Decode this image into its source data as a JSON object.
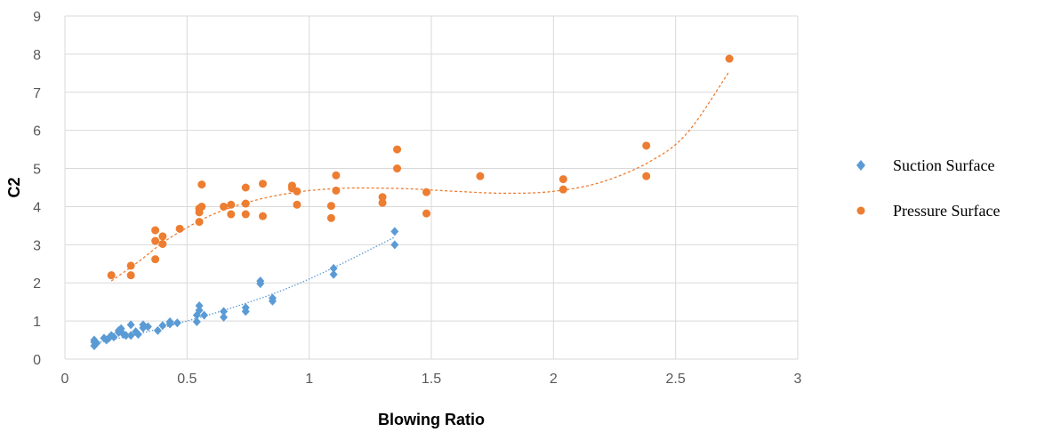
{
  "chart_data": {
    "type": "scatter",
    "xlabel": "Blowing Ratio",
    "ylabel": "C2",
    "xlim": [
      0,
      3
    ],
    "ylim": [
      0,
      9
    ],
    "xticks": [
      "0",
      "0.5",
      "1",
      "1.5",
      "2",
      "2.5",
      "3"
    ],
    "yticks": [
      "0",
      "1",
      "2",
      "3",
      "4",
      "5",
      "6",
      "7",
      "8",
      "9"
    ],
    "grid": "vertical and horizontal major gridlines",
    "legend_position": "right",
    "series": [
      {
        "name": "Suction Surface",
        "marker": "diamond",
        "color": "#5B9BD5",
        "trendline": "polynomial",
        "points": [
          [
            0.12,
            0.35
          ],
          [
            0.12,
            0.45
          ],
          [
            0.12,
            0.5
          ],
          [
            0.13,
            0.42
          ],
          [
            0.16,
            0.55
          ],
          [
            0.17,
            0.5
          ],
          [
            0.18,
            0.55
          ],
          [
            0.19,
            0.62
          ],
          [
            0.2,
            0.58
          ],
          [
            0.22,
            0.7
          ],
          [
            0.22,
            0.75
          ],
          [
            0.23,
            0.8
          ],
          [
            0.24,
            0.65
          ],
          [
            0.25,
            0.62
          ],
          [
            0.27,
            0.9
          ],
          [
            0.27,
            0.62
          ],
          [
            0.29,
            0.72
          ],
          [
            0.3,
            0.65
          ],
          [
            0.32,
            0.82
          ],
          [
            0.32,
            0.9
          ],
          [
            0.34,
            0.85
          ],
          [
            0.38,
            0.75
          ],
          [
            0.4,
            0.88
          ],
          [
            0.43,
            0.92
          ],
          [
            0.43,
            0.98
          ],
          [
            0.46,
            0.95
          ],
          [
            0.54,
            0.98
          ],
          [
            0.54,
            1.15
          ],
          [
            0.55,
            1.28
          ],
          [
            0.55,
            1.4
          ],
          [
            0.57,
            1.15
          ],
          [
            0.65,
            1.1
          ],
          [
            0.65,
            1.25
          ],
          [
            0.74,
            1.25
          ],
          [
            0.74,
            1.35
          ],
          [
            0.8,
            1.98
          ],
          [
            0.8,
            2.05
          ],
          [
            0.85,
            1.52
          ],
          [
            0.85,
            1.6
          ],
          [
            1.1,
            2.22
          ],
          [
            1.1,
            2.38
          ],
          [
            1.35,
            3.0
          ],
          [
            1.35,
            3.35
          ]
        ],
        "trend": [
          [
            0.12,
            0.42
          ],
          [
            0.3,
            0.66
          ],
          [
            0.5,
            1.0
          ],
          [
            0.7,
            1.38
          ],
          [
            0.9,
            1.83
          ],
          [
            1.1,
            2.4
          ],
          [
            1.35,
            3.2
          ]
        ]
      },
      {
        "name": "Pressure Surface",
        "marker": "circle",
        "color": "#ED7D31",
        "trendline": "polynomial",
        "points": [
          [
            0.19,
            2.2
          ],
          [
            0.27,
            2.45
          ],
          [
            0.27,
            2.2
          ],
          [
            0.37,
            3.38
          ],
          [
            0.37,
            3.1
          ],
          [
            0.37,
            2.62
          ],
          [
            0.4,
            3.22
          ],
          [
            0.4,
            3.02
          ],
          [
            0.47,
            3.42
          ],
          [
            0.55,
            3.6
          ],
          [
            0.55,
            3.85
          ],
          [
            0.55,
            3.95
          ],
          [
            0.56,
            4.0
          ],
          [
            0.56,
            4.58
          ],
          [
            0.65,
            4.0
          ],
          [
            0.68,
            4.05
          ],
          [
            0.68,
            3.8
          ],
          [
            0.74,
            4.5
          ],
          [
            0.74,
            4.08
          ],
          [
            0.74,
            3.8
          ],
          [
            0.81,
            4.6
          ],
          [
            0.81,
            3.75
          ],
          [
            0.93,
            4.55
          ],
          [
            0.93,
            4.48
          ],
          [
            0.95,
            4.4
          ],
          [
            0.95,
            4.05
          ],
          [
            1.09,
            4.02
          ],
          [
            1.09,
            3.7
          ],
          [
            1.11,
            4.82
          ],
          [
            1.11,
            4.42
          ],
          [
            1.3,
            4.25
          ],
          [
            1.3,
            4.1
          ],
          [
            1.36,
            5.5
          ],
          [
            1.36,
            5.0
          ],
          [
            1.48,
            4.38
          ],
          [
            1.48,
            3.82
          ],
          [
            1.7,
            4.8
          ],
          [
            2.04,
            4.72
          ],
          [
            2.04,
            4.45
          ],
          [
            2.38,
            5.6
          ],
          [
            2.38,
            4.8
          ],
          [
            2.72,
            7.88
          ]
        ],
        "trend": [
          [
            0.19,
            2.05
          ],
          [
            0.3,
            2.55
          ],
          [
            0.4,
            3.05
          ],
          [
            0.5,
            3.45
          ],
          [
            0.6,
            3.78
          ],
          [
            0.7,
            4.02
          ],
          [
            0.8,
            4.2
          ],
          [
            0.9,
            4.33
          ],
          [
            1.0,
            4.42
          ],
          [
            1.1,
            4.47
          ],
          [
            1.2,
            4.49
          ],
          [
            1.4,
            4.47
          ],
          [
            1.6,
            4.4
          ],
          [
            1.8,
            4.35
          ],
          [
            2.0,
            4.4
          ],
          [
            2.2,
            4.65
          ],
          [
            2.4,
            5.2
          ],
          [
            2.55,
            5.95
          ],
          [
            2.72,
            7.55
          ]
        ]
      }
    ]
  }
}
